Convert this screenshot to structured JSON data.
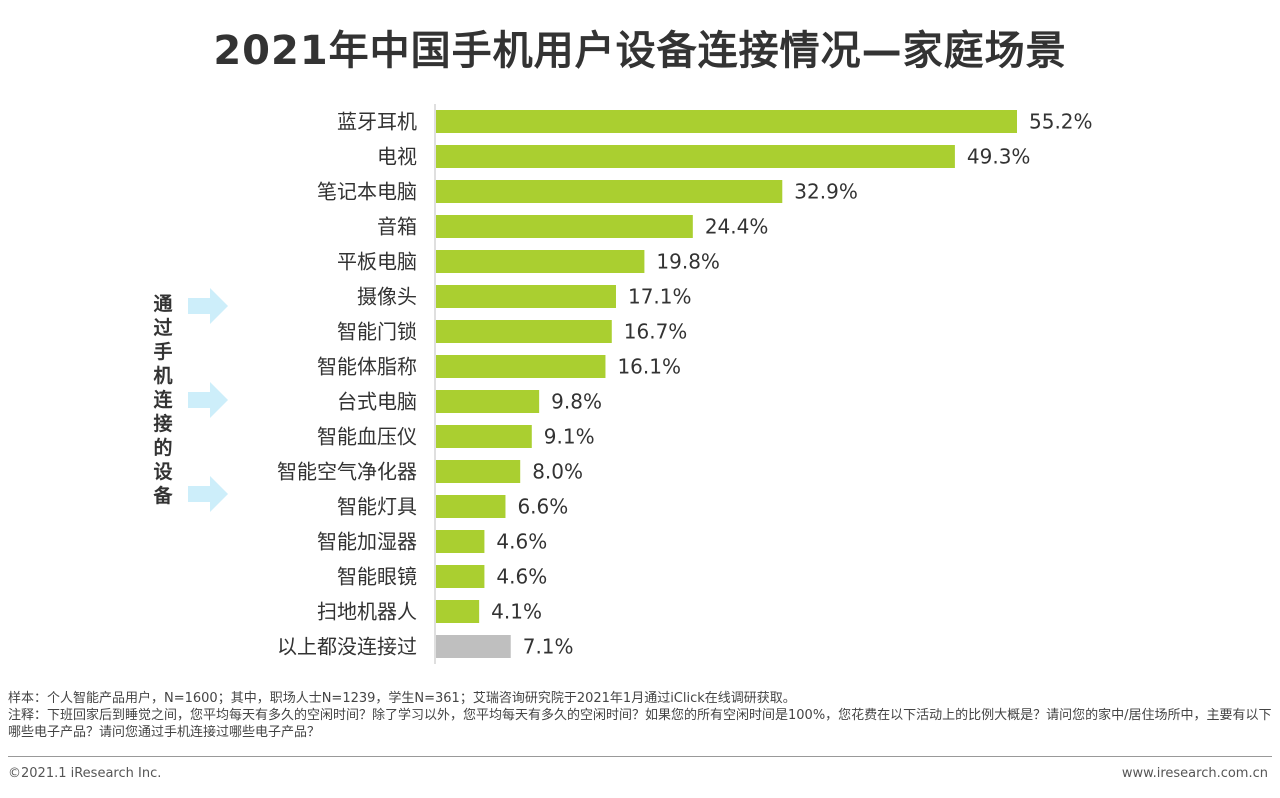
{
  "title": "2021年中国手机用户设备连接情况—家庭场景",
  "side_label": [
    "通",
    "过",
    "手",
    "机",
    "连",
    "接",
    "的",
    "设",
    "备"
  ],
  "colors": {
    "bar": "#aacf30",
    "bar_other": "#bfbfbf",
    "arrow": "#cdeefa",
    "text": "#333333"
  },
  "chart_data": {
    "type": "bar",
    "orientation": "horizontal",
    "title": "2021年中国手机用户设备连接情况—家庭场景",
    "categories": [
      "蓝牙耳机",
      "电视",
      "笔记本电脑",
      "音箱",
      "平板电脑",
      "摄像头",
      "智能门锁",
      "智能体脂称",
      "台式电脑",
      "智能血压仪",
      "智能空气净化器",
      "智能灯具",
      "智能加湿器",
      "智能眼镜",
      "扫地机器人",
      "以上都没连接过"
    ],
    "values": [
      55.2,
      49.3,
      32.9,
      24.4,
      19.8,
      17.1,
      16.7,
      16.1,
      9.8,
      9.1,
      8.0,
      6.6,
      4.6,
      4.6,
      4.1,
      7.1
    ],
    "labels": [
      "55.2%",
      "49.3%",
      "32.9%",
      "24.4%",
      "19.8%",
      "17.1%",
      "16.7%",
      "16.1%",
      "9.8%",
      "9.1%",
      "8.0%",
      "6.6%",
      "4.6%",
      "4.6%",
      "4.1%",
      "7.1%"
    ],
    "highlight_last": true,
    "xlim": [
      0,
      60
    ],
    "grid": false
  },
  "notes": {
    "sample": "样本：个人智能产品用户，N=1600；其中，职场人士N=1239，学生N=361；艾瑞咨询研究院于2021年1月通过iClick在线调研获取。",
    "note": "注释：下班回家后到睡觉之间，您平均每天有多久的空闲时间？除了学习以外，您平均每天有多久的空闲时间？如果您的所有空闲时间是100%，您花费在以下活动上的比例大概是？请问您的家中/居住场所中，主要有以下哪些电子产品？请问您通过手机连接过哪些电子产品？"
  },
  "footer": {
    "copyright": "©2021.1 iResearch Inc.",
    "website": "www.iresearch.com.cn"
  }
}
